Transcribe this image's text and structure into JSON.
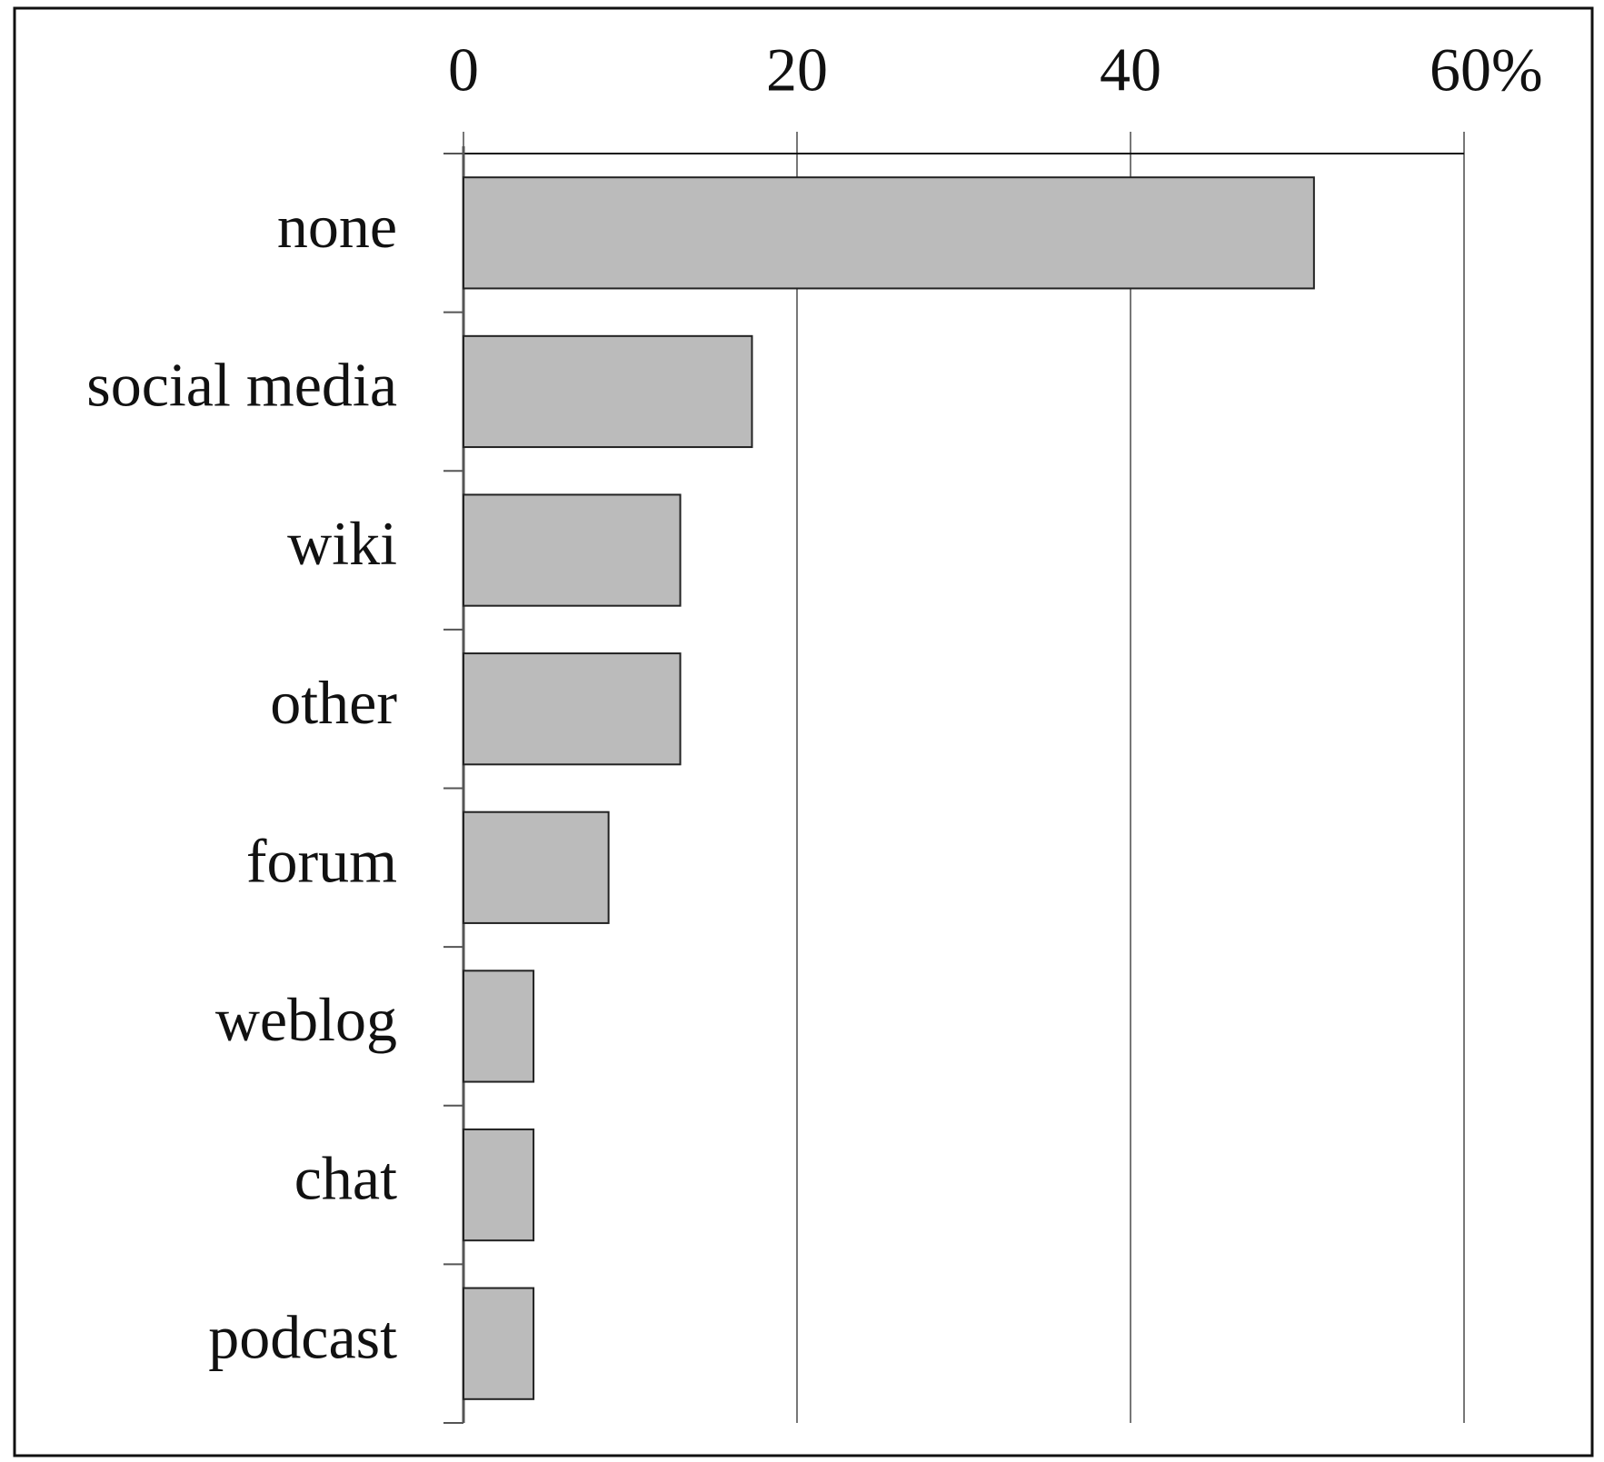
{
  "chart_data": {
    "type": "hbar",
    "categories": [
      "none",
      "social media",
      "wiki",
      "other",
      "forum",
      "weblog",
      "chat",
      "podcast"
    ],
    "values": [
      51,
      17.3,
      13,
      13,
      8.7,
      4.2,
      4.2,
      4.2
    ],
    "color": "#bbbbbb",
    "xlim": [
      0,
      60
    ],
    "xticks": [
      0,
      20,
      40,
      {
        "value": 60,
        "label": "60%"
      }
    ],
    "grid": true
  }
}
